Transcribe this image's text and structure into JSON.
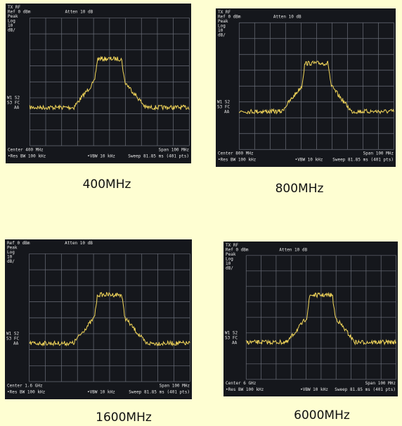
{
  "panels": [
    {
      "screen": {
        "header": [
          "TX RF",
          "Ref 0 dBm",
          "Peak",
          "Log",
          "10",
          "dB/"
        ],
        "atten": "Atten 10 dB",
        "markers": [
          "W1 S2",
          "S3 FC",
          "AA"
        ],
        "center": "Center 400 MHz",
        "span": "Span 100 MHz",
        "rbw": "•Res BW 100 kHz",
        "vbw": "•VBW 10 kHz",
        "sweep": "Sweep 81.85 ms (401 pts)"
      },
      "caption": "400MHz"
    },
    {
      "screen": {
        "header": [
          "TX RF",
          "Ref 0 dBm",
          "Peak",
          "Log",
          "10",
          "dB/"
        ],
        "atten": "Atten 10 dB",
        "markers": [
          "W1 S2",
          "S3 FC",
          "AA"
        ],
        "center": "Center 800 MHz",
        "span": "Span 100 MHz",
        "rbw": "•Res BW 100 kHz",
        "vbw": "•VBW 10 kHz",
        "sweep": "Sweep 81.85 ms (401 pts)"
      },
      "caption": "800MHz"
    },
    {
      "screen": {
        "header": [
          "Ref 0 dBm",
          "Peak",
          "Log",
          "10",
          "dB/"
        ],
        "atten": "Atten 10 dB",
        "markers": [
          "W1 S2",
          "S3 FC",
          "AA"
        ],
        "center": "Center 1.6 GHz",
        "span": "Span 100 MHz",
        "rbw": "•Res BW 100 kHz",
        "vbw": "•VBW 10 kHz",
        "sweep": "Sweep 81.85 ms (401 pts)"
      },
      "caption": "1600MHz"
    },
    {
      "screen": {
        "header": [
          "TX RF",
          "Ref 0 dBm",
          "Peak",
          "Log",
          "10",
          "dB/"
        ],
        "atten": "Atten 10 dB",
        "markers": [
          "W1 S2",
          "S3 FC",
          "AA"
        ],
        "center": "Center 6 GHz",
        "span": "Span 100 MHz",
        "rbw": "•Res BW 100 kHz",
        "vbw": "•VBW 10 kHz",
        "sweep": "Sweep 81.85 ms (401 pts)"
      },
      "caption": "6000MHz"
    }
  ]
}
